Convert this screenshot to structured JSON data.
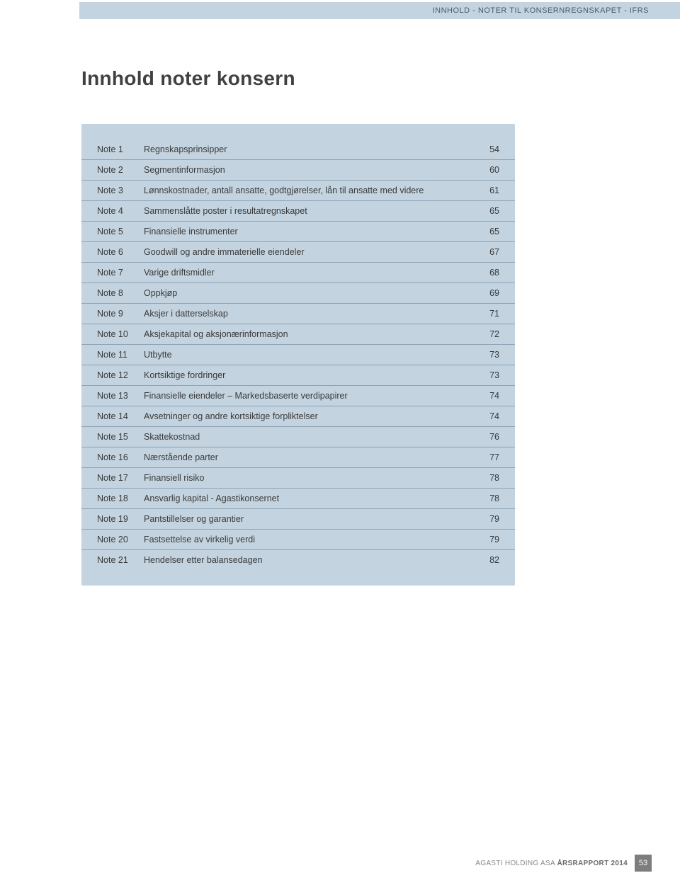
{
  "header": {
    "breadcrumb": "INNHOLD - NOTER TIL KONSERNREGNSKAPET - IFRS"
  },
  "title": "Innhold noter konsern",
  "table": {
    "rows": [
      {
        "note": "Note 1",
        "desc": "Regnskapsprinsipper",
        "page": "54"
      },
      {
        "note": "Note 2",
        "desc": "Segmentinformasjon",
        "page": "60"
      },
      {
        "note": "Note 3",
        "desc": "Lønnskostnader, antall ansatte, godtgjørelser, lån til ansatte med videre",
        "page": "61"
      },
      {
        "note": "Note 4",
        "desc": "Sammenslåtte poster i resultatregnskapet",
        "page": "65"
      },
      {
        "note": "Note 5",
        "desc": "Finansielle instrumenter",
        "page": "65"
      },
      {
        "note": "Note 6",
        "desc": "Goodwill og andre immaterielle eiendeler",
        "page": "67"
      },
      {
        "note": "Note 7",
        "desc": "Varige driftsmidler",
        "page": "68"
      },
      {
        "note": "Note 8",
        "desc": "Oppkjøp",
        "page": "69"
      },
      {
        "note": "Note 9",
        "desc": "Aksjer i datterselskap",
        "page": "71"
      },
      {
        "note": "Note 10",
        "desc": "Aksjekapital og aksjonærinformasjon",
        "page": "72"
      },
      {
        "note": "Note 11",
        "desc": "Utbytte",
        "page": "73"
      },
      {
        "note": "Note 12",
        "desc": "Kortsiktige fordringer",
        "page": "73"
      },
      {
        "note": "Note 13",
        "desc": "Finansielle eiendeler – Markedsbaserte verdipapirer",
        "page": "74"
      },
      {
        "note": "Note 14",
        "desc": "Avsetninger og andre kortsiktige forpliktelser",
        "page": "74"
      },
      {
        "note": "Note 15",
        "desc": "Skattekostnad",
        "page": "76"
      },
      {
        "note": "Note 16",
        "desc": "Nærstående parter",
        "page": "77"
      },
      {
        "note": "Note 17",
        "desc": "Finansiell risiko",
        "page": "78"
      },
      {
        "note": "Note 18",
        "desc": "Ansvarlig kapital - Agastikonsernet",
        "page": "78"
      },
      {
        "note": "Note 19",
        "desc": "Pantstillelser og garantier",
        "page": "79"
      },
      {
        "note": "Note 20",
        "desc": "Fastsettelse av virkelig verdi",
        "page": "79"
      },
      {
        "note": "Note 21",
        "desc": "Hendelser etter balansedagen",
        "page": "82"
      }
    ]
  },
  "footer": {
    "company": "AGASTI HOLDING ASA",
    "report": "ÅRSRAPPORT 2014",
    "page_number": "53"
  },
  "colors": {
    "panel_bg": "#c3d3df",
    "row_border": "#8fa3b5",
    "text": "#3a3a3a",
    "title": "#414141",
    "footer_badge_bg": "#7d7d7d"
  }
}
